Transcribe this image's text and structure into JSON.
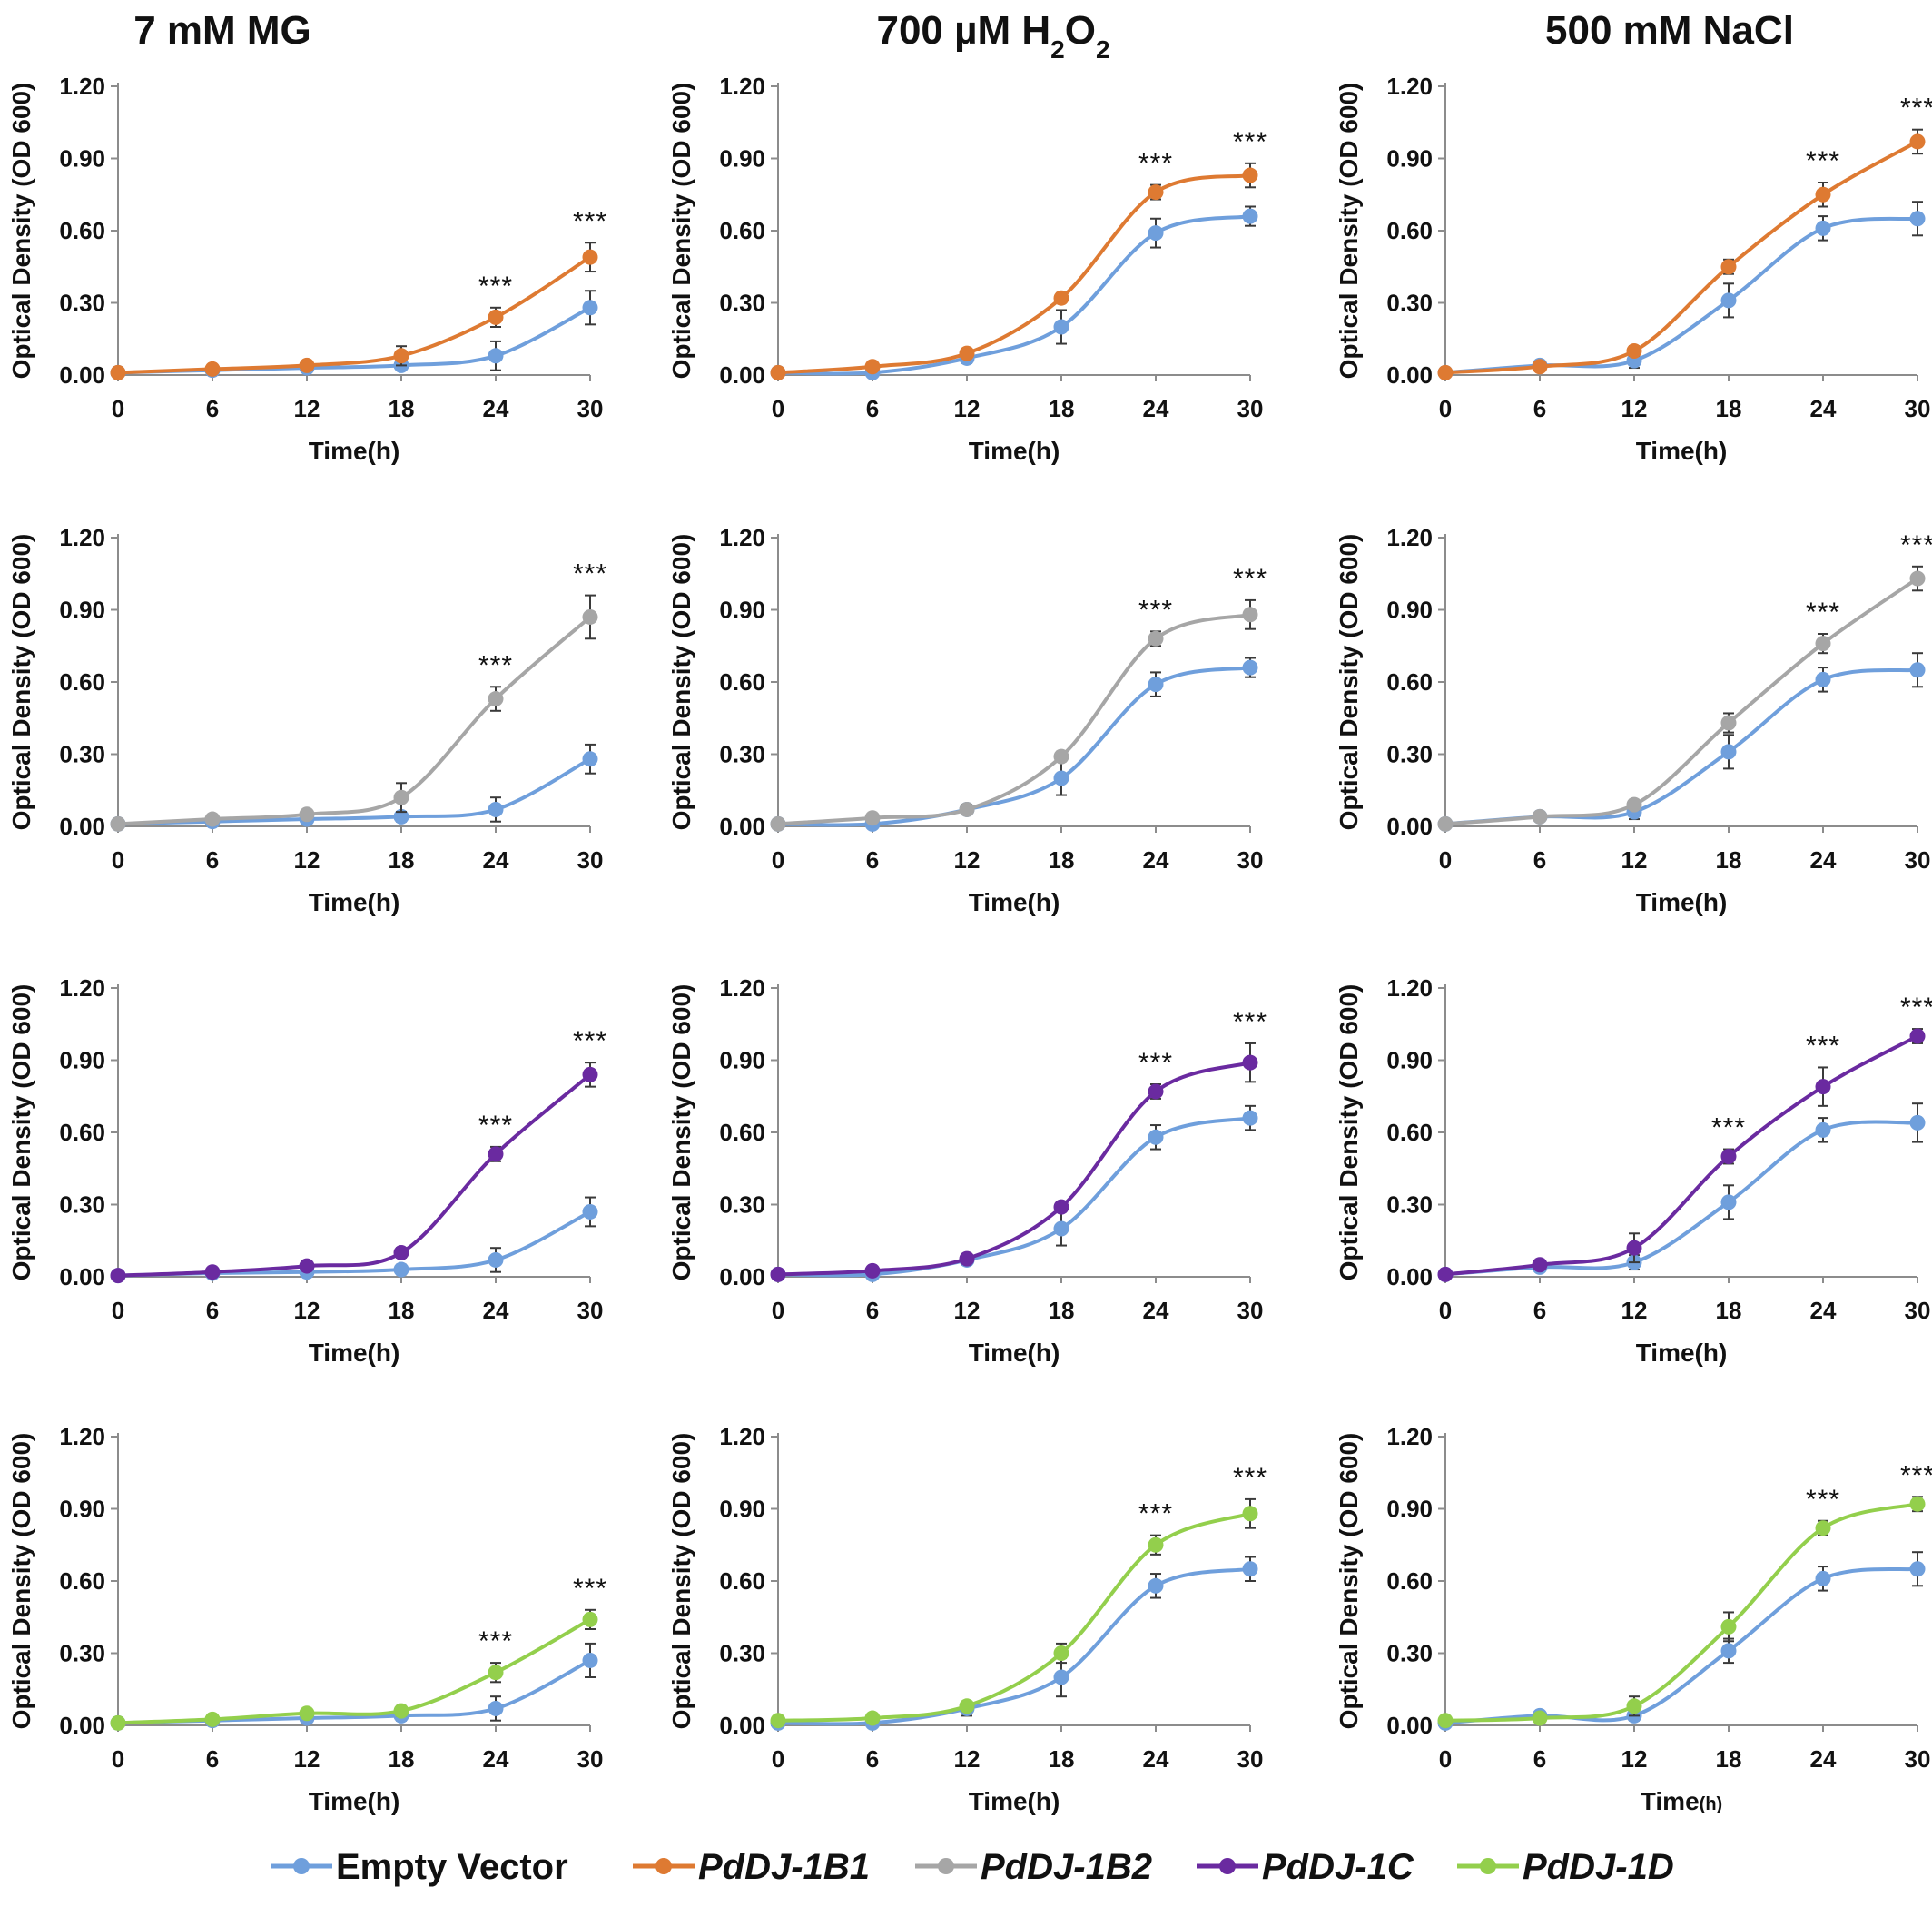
{
  "figure": {
    "column_titles": [
      {
        "parts": [
          {
            "t": "7 mM MG"
          }
        ]
      },
      {
        "parts": [
          {
            "t": "700 µM H"
          },
          {
            "t": "2",
            "sub": true
          },
          {
            "t": "O"
          },
          {
            "t": "2",
            "sub": true
          }
        ]
      },
      {
        "parts": [
          {
            "t": "500 mM NaCl"
          }
        ]
      }
    ],
    "legend": [
      {
        "name": "Empty Vector",
        "color": "#6f9fdc",
        "italic": false
      },
      {
        "name": "PdDJ-1B1",
        "color": "#de7a32",
        "italic": true
      },
      {
        "name": "PdDJ-1B2",
        "color": "#a6a6a6",
        "italic": true
      },
      {
        "name": "PdDJ-1C",
        "color": "#6a2aa0",
        "italic": true
      },
      {
        "name": "PdDJ-1D",
        "color": "#93cf4c",
        "italic": true
      }
    ]
  },
  "chart_data": [
    {
      "type": "line",
      "row": 0,
      "col": 0,
      "xlabel": "Time(h)",
      "ylabel": "Optical Density (OD 600)",
      "x": [
        0,
        6,
        12,
        18,
        24,
        30
      ],
      "xticks": [
        "0",
        "6",
        "12",
        "18",
        "24",
        "30"
      ],
      "yticks": [
        "0.00",
        "0.30",
        "0.60",
        "0.90",
        "1.20"
      ],
      "ylim": [
        0,
        1.2
      ],
      "series": [
        {
          "name": "Empty Vector",
          "color": "#6f9fdc",
          "values": [
            0.01,
            0.02,
            0.03,
            0.04,
            0.08,
            0.28
          ],
          "errors": [
            0.005,
            0.01,
            0.01,
            0.02,
            0.06,
            0.07
          ]
        },
        {
          "name": "PdDJ-1B1",
          "color": "#de7a32",
          "values": [
            0.01,
            0.025,
            0.04,
            0.08,
            0.24,
            0.49
          ],
          "errors": [
            0.005,
            0.01,
            0.01,
            0.04,
            0.04,
            0.06
          ]
        }
      ],
      "significance": [
        {
          "x": 24,
          "label": "***"
        },
        {
          "x": 30,
          "label": "***"
        }
      ]
    },
    {
      "type": "line",
      "row": 0,
      "col": 1,
      "xlabel": "Time(h)",
      "ylabel": "Optical Density (OD 600)",
      "x": [
        0,
        6,
        12,
        18,
        24,
        30
      ],
      "xticks": [
        "0",
        "6",
        "12",
        "18",
        "24",
        "30"
      ],
      "yticks": [
        "0.00",
        "0.30",
        "0.60",
        "0.90",
        "1.20"
      ],
      "ylim": [
        0,
        1.2
      ],
      "series": [
        {
          "name": "Empty Vector",
          "color": "#6f9fdc",
          "values": [
            0.01,
            0.01,
            0.07,
            0.2,
            0.59,
            0.66
          ],
          "errors": [
            0.005,
            0.01,
            0.02,
            0.07,
            0.06,
            0.04
          ]
        },
        {
          "name": "PdDJ-1B1",
          "color": "#de7a32",
          "values": [
            0.01,
            0.035,
            0.09,
            0.32,
            0.76,
            0.83
          ],
          "errors": [
            0.005,
            0.01,
            0.02,
            0.02,
            0.03,
            0.05
          ]
        }
      ],
      "significance": [
        {
          "x": 24,
          "label": "***"
        },
        {
          "x": 30,
          "label": "***"
        }
      ]
    },
    {
      "type": "line",
      "row": 0,
      "col": 2,
      "xlabel": "Time(h)",
      "ylabel": "Optical Density (OD 600)",
      "x": [
        0,
        6,
        12,
        18,
        24,
        30
      ],
      "xticks": [
        "0",
        "6",
        "12",
        "18",
        "24",
        "30"
      ],
      "yticks": [
        "0.00",
        "0.30",
        "0.60",
        "0.90",
        "1.20"
      ],
      "ylim": [
        0,
        1.2
      ],
      "series": [
        {
          "name": "Empty Vector",
          "color": "#6f9fdc",
          "values": [
            0.01,
            0.04,
            0.06,
            0.31,
            0.61,
            0.65
          ],
          "errors": [
            0.005,
            0.01,
            0.03,
            0.07,
            0.05,
            0.07
          ]
        },
        {
          "name": "PdDJ-1B1",
          "color": "#de7a32",
          "values": [
            0.01,
            0.035,
            0.1,
            0.45,
            0.75,
            0.97
          ],
          "errors": [
            0.005,
            0.01,
            0.02,
            0.03,
            0.05,
            0.05
          ]
        }
      ],
      "significance": [
        {
          "x": 24,
          "label": "***"
        },
        {
          "x": 30,
          "label": "***"
        }
      ]
    },
    {
      "type": "line",
      "row": 1,
      "col": 0,
      "xlabel": "Time(h)",
      "ylabel": "Optical Density (OD 600)",
      "x": [
        0,
        6,
        12,
        18,
        24,
        30
      ],
      "xticks": [
        "0",
        "6",
        "12",
        "18",
        "24",
        "30"
      ],
      "yticks": [
        "0.00",
        "0.30",
        "0.60",
        "0.90",
        "1.20"
      ],
      "ylim": [
        0,
        1.2
      ],
      "series": [
        {
          "name": "Empty Vector",
          "color": "#6f9fdc",
          "values": [
            0.01,
            0.02,
            0.03,
            0.04,
            0.07,
            0.28
          ],
          "errors": [
            0.005,
            0.01,
            0.01,
            0.02,
            0.05,
            0.06
          ]
        },
        {
          "name": "PdDJ-1B2",
          "color": "#a6a6a6",
          "values": [
            0.01,
            0.03,
            0.05,
            0.12,
            0.53,
            0.87
          ],
          "errors": [
            0.005,
            0.01,
            0.01,
            0.06,
            0.05,
            0.09
          ]
        }
      ],
      "significance": [
        {
          "x": 24,
          "label": "***"
        },
        {
          "x": 30,
          "label": "***"
        }
      ]
    },
    {
      "type": "line",
      "row": 1,
      "col": 1,
      "xlabel": "Time(h)",
      "ylabel": "Optical Density (OD 600)",
      "x": [
        0,
        6,
        12,
        18,
        24,
        30
      ],
      "xticks": [
        "0",
        "6",
        "12",
        "18",
        "24",
        "30"
      ],
      "yticks": [
        "0.00",
        "0.30",
        "0.60",
        "0.90",
        "1.20"
      ],
      "ylim": [
        0,
        1.2
      ],
      "series": [
        {
          "name": "Empty Vector",
          "color": "#6f9fdc",
          "values": [
            0.01,
            0.01,
            0.07,
            0.2,
            0.59,
            0.66
          ],
          "errors": [
            0.005,
            0.01,
            0.02,
            0.07,
            0.05,
            0.04
          ]
        },
        {
          "name": "PdDJ-1B2",
          "color": "#a6a6a6",
          "values": [
            0.01,
            0.035,
            0.07,
            0.29,
            0.78,
            0.88
          ],
          "errors": [
            0.005,
            0.01,
            0.02,
            0.02,
            0.03,
            0.06
          ]
        }
      ],
      "significance": [
        {
          "x": 24,
          "label": "***"
        },
        {
          "x": 30,
          "label": "***"
        }
      ]
    },
    {
      "type": "line",
      "row": 1,
      "col": 2,
      "xlabel": "Time(h)",
      "ylabel": "Optical Density (OD 600)",
      "x": [
        0,
        6,
        12,
        18,
        24,
        30
      ],
      "xticks": [
        "0",
        "6",
        "12",
        "18",
        "24",
        "30"
      ],
      "yticks": [
        "0.00",
        "0.30",
        "0.60",
        "0.90",
        "1.20"
      ],
      "ylim": [
        0,
        1.2
      ],
      "series": [
        {
          "name": "Empty Vector",
          "color": "#6f9fdc",
          "values": [
            0.01,
            0.04,
            0.06,
            0.31,
            0.61,
            0.65
          ],
          "errors": [
            0.005,
            0.01,
            0.03,
            0.07,
            0.05,
            0.07
          ]
        },
        {
          "name": "PdDJ-1B2",
          "color": "#a6a6a6",
          "values": [
            0.01,
            0.04,
            0.09,
            0.43,
            0.76,
            1.03
          ],
          "errors": [
            0.005,
            0.01,
            0.02,
            0.04,
            0.04,
            0.05
          ]
        }
      ],
      "significance": [
        {
          "x": 24,
          "label": "***"
        },
        {
          "x": 30,
          "label": "***"
        }
      ]
    },
    {
      "type": "line",
      "row": 2,
      "col": 0,
      "xlabel": "Time(h)",
      "ylabel": "Optical Density (OD 600)",
      "x": [
        0,
        6,
        12,
        18,
        24,
        30
      ],
      "xticks": [
        "0",
        "6",
        "12",
        "18",
        "24",
        "30"
      ],
      "yticks": [
        "0.00",
        "0.30",
        "0.60",
        "0.90",
        "1.20"
      ],
      "ylim": [
        0,
        1.2
      ],
      "series": [
        {
          "name": "Empty Vector",
          "color": "#6f9fdc",
          "values": [
            0.005,
            0.015,
            0.02,
            0.03,
            0.07,
            0.27
          ],
          "errors": [
            0.005,
            0.01,
            0.01,
            0.02,
            0.05,
            0.06
          ]
        },
        {
          "name": "PdDJ-1C",
          "color": "#6a2aa0",
          "values": [
            0.005,
            0.02,
            0.045,
            0.1,
            0.51,
            0.84
          ],
          "errors": [
            0.005,
            0.01,
            0.01,
            0.02,
            0.03,
            0.05
          ]
        }
      ],
      "significance": [
        {
          "x": 24,
          "label": "***"
        },
        {
          "x": 30,
          "label": "***"
        }
      ]
    },
    {
      "type": "line",
      "row": 2,
      "col": 1,
      "xlabel": "Time(h)",
      "ylabel": "Optical Density (OD 600)",
      "x": [
        0,
        6,
        12,
        18,
        24,
        30
      ],
      "xticks": [
        "0",
        "6",
        "12",
        "18",
        "24",
        "30"
      ],
      "yticks": [
        "0.00",
        "0.30",
        "0.60",
        "0.90",
        "1.20"
      ],
      "ylim": [
        0,
        1.2
      ],
      "series": [
        {
          "name": "Empty Vector",
          "color": "#6f9fdc",
          "values": [
            0.01,
            0.01,
            0.07,
            0.2,
            0.58,
            0.66
          ],
          "errors": [
            0.005,
            0.01,
            0.02,
            0.07,
            0.05,
            0.05
          ]
        },
        {
          "name": "PdDJ-1C",
          "color": "#6a2aa0",
          "values": [
            0.01,
            0.025,
            0.075,
            0.29,
            0.77,
            0.89
          ],
          "errors": [
            0.005,
            0.01,
            0.02,
            0.02,
            0.03,
            0.08
          ]
        }
      ],
      "significance": [
        {
          "x": 24,
          "label": "***"
        },
        {
          "x": 30,
          "label": "***"
        }
      ]
    },
    {
      "type": "line",
      "row": 2,
      "col": 2,
      "xlabel": "Time(h)",
      "ylabel": "Optical Density (OD 600)",
      "x": [
        0,
        6,
        12,
        18,
        24,
        30
      ],
      "xticks": [
        "0",
        "6",
        "12",
        "18",
        "24",
        "30"
      ],
      "yticks": [
        "0.00",
        "0.30",
        "0.60",
        "0.90",
        "1.20"
      ],
      "ylim": [
        0,
        1.2
      ],
      "series": [
        {
          "name": "Empty Vector",
          "color": "#6f9fdc",
          "values": [
            0.01,
            0.04,
            0.06,
            0.31,
            0.61,
            0.64
          ],
          "errors": [
            0.005,
            0.01,
            0.03,
            0.07,
            0.05,
            0.08
          ]
        },
        {
          "name": "PdDJ-1C",
          "color": "#6a2aa0",
          "values": [
            0.01,
            0.05,
            0.12,
            0.5,
            0.79,
            1.0
          ],
          "errors": [
            0.005,
            0.01,
            0.06,
            0.03,
            0.08,
            0.03
          ]
        }
      ],
      "significance": [
        {
          "x": 18,
          "label": "***"
        },
        {
          "x": 24,
          "label": "***"
        },
        {
          "x": 30,
          "label": "***"
        }
      ]
    },
    {
      "type": "line",
      "row": 3,
      "col": 0,
      "xlabel": "Time(h)",
      "ylabel": "Optical Density (OD 600)",
      "x": [
        0,
        6,
        12,
        18,
        24,
        30
      ],
      "xticks": [
        "0",
        "6",
        "12",
        "18",
        "24",
        "30"
      ],
      "yticks": [
        "0.00",
        "0.30",
        "0.60",
        "0.90",
        "1.20"
      ],
      "ylim": [
        0,
        1.2
      ],
      "series": [
        {
          "name": "Empty Vector",
          "color": "#6f9fdc",
          "values": [
            0.01,
            0.02,
            0.03,
            0.04,
            0.07,
            0.27
          ],
          "errors": [
            0.005,
            0.01,
            0.01,
            0.02,
            0.05,
            0.07
          ]
        },
        {
          "name": "PdDJ-1D",
          "color": "#93cf4c",
          "values": [
            0.01,
            0.025,
            0.05,
            0.06,
            0.22,
            0.44
          ],
          "errors": [
            0.005,
            0.01,
            0.01,
            0.02,
            0.04,
            0.04
          ]
        }
      ],
      "significance": [
        {
          "x": 24,
          "label": "***"
        },
        {
          "x": 30,
          "label": "***"
        }
      ]
    },
    {
      "type": "line",
      "row": 3,
      "col": 1,
      "xlabel": "Time(h)",
      "ylabel": "Optical Density (OD 600)",
      "x": [
        0,
        6,
        12,
        18,
        24,
        30
      ],
      "xticks": [
        "0",
        "6",
        "12",
        "18",
        "24",
        "30"
      ],
      "yticks": [
        "0.00",
        "0.30",
        "0.60",
        "0.90",
        "1.20"
      ],
      "ylim": [
        0,
        1.2
      ],
      "series": [
        {
          "name": "Empty Vector",
          "color": "#6f9fdc",
          "values": [
            0.01,
            0.01,
            0.07,
            0.2,
            0.58,
            0.65
          ],
          "errors": [
            0.005,
            0.01,
            0.03,
            0.08,
            0.05,
            0.05
          ]
        },
        {
          "name": "PdDJ-1D",
          "color": "#93cf4c",
          "values": [
            0.02,
            0.03,
            0.08,
            0.3,
            0.75,
            0.88
          ],
          "errors": [
            0.005,
            0.01,
            0.02,
            0.04,
            0.04,
            0.06
          ]
        }
      ],
      "significance": [
        {
          "x": 24,
          "label": "***"
        },
        {
          "x": 30,
          "label": "***"
        }
      ]
    },
    {
      "type": "line",
      "row": 3,
      "col": 2,
      "xlabel": "Time",
      "xlabel_suffix": "(h)",
      "ylabel": "Optical Density (OD 600)",
      "x": [
        0,
        6,
        12,
        18,
        24,
        30
      ],
      "xticks": [
        "0",
        "6",
        "12",
        "18",
        "24",
        "30"
      ],
      "yticks": [
        "0.00",
        "0.30",
        "0.60",
        "0.90",
        "1.20"
      ],
      "ylim": [
        0,
        1.2
      ],
      "series": [
        {
          "name": "Empty Vector",
          "color": "#6f9fdc",
          "values": [
            0.01,
            0.04,
            0.04,
            0.31,
            0.61,
            0.65
          ],
          "errors": [
            0.005,
            0.01,
            0.02,
            0.05,
            0.05,
            0.07
          ]
        },
        {
          "name": "PdDJ-1D",
          "color": "#93cf4c",
          "values": [
            0.02,
            0.03,
            0.08,
            0.41,
            0.82,
            0.92
          ],
          "errors": [
            0.005,
            0.01,
            0.04,
            0.06,
            0.03,
            0.03
          ]
        }
      ],
      "significance": [
        {
          "x": 24,
          "label": "***"
        },
        {
          "x": 30,
          "label": "***"
        }
      ]
    }
  ]
}
